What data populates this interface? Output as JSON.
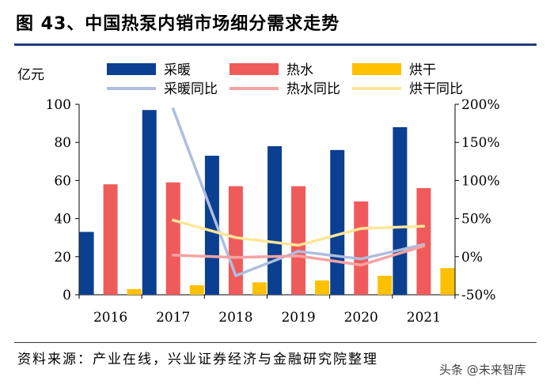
{
  "title": "图 43、中国热泵内销市场细分需求走势",
  "source": "资料来源：产业在线，兴业证券经济与金融研究院整理",
  "watermark": "头条 @未来智库",
  "chart_data": {
    "type": "bar",
    "categories": [
      "2016",
      "2017",
      "2018",
      "2019",
      "2020",
      "2021"
    ],
    "ylabel": "亿元",
    "ylim": [
      0,
      100
    ],
    "yticks": [
      0,
      20,
      40,
      60,
      80,
      100
    ],
    "y2lim": [
      -50,
      200
    ],
    "y2ticks": [
      -50,
      0,
      50,
      100,
      150,
      200
    ],
    "y2unit": "%",
    "bar_series": [
      {
        "name": "采暖",
        "color": "#0b3f91",
        "values": [
          33,
          97,
          73,
          78,
          76,
          88
        ]
      },
      {
        "name": "热水",
        "color": "#ef5b5b",
        "values": [
          58,
          59,
          57,
          57,
          49,
          56
        ]
      },
      {
        "name": "烘干",
        "color": "#ffc000",
        "values": [
          3,
          5,
          6.5,
          7.5,
          10,
          14
        ]
      }
    ],
    "line_series": [
      {
        "name": "采暖同比",
        "color": "#aebedf",
        "values": [
          null,
          194,
          -25,
          7,
          -3,
          16
        ]
      },
      {
        "name": "热水同比",
        "color": "#f5a3a3",
        "values": [
          null,
          2,
          -1,
          1,
          -11,
          14
        ]
      },
      {
        "name": "烘干同比",
        "color": "#ffe699",
        "values": [
          null,
          48,
          25,
          15,
          37,
          40
        ]
      }
    ],
    "legend_position": "top",
    "grid": false
  }
}
